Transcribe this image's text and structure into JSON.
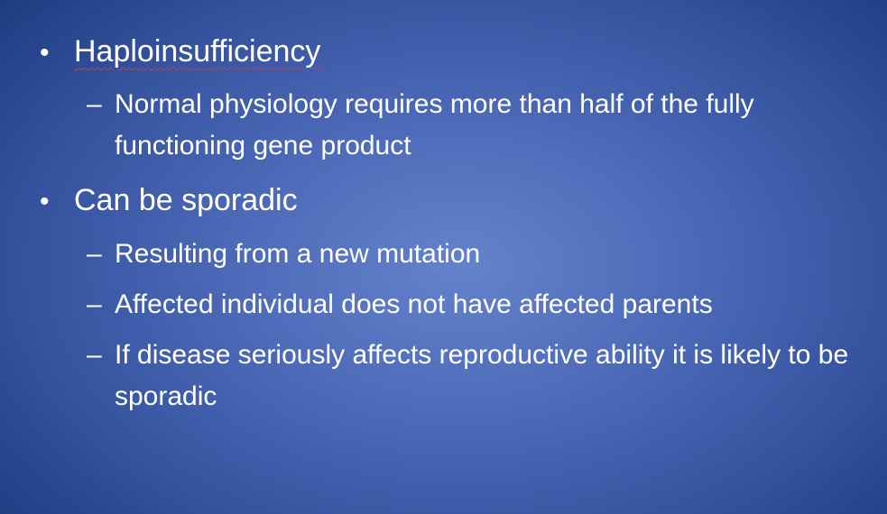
{
  "slide": {
    "background_color": "#4d6bb8",
    "text_color": "#ffffff",
    "bullets": [
      {
        "text": "Haploinsufficiency",
        "marker": "•",
        "sub": [
          {
            "marker": "–",
            "text": "Normal physiology requires more than half of the fully functioning gene product"
          }
        ]
      },
      {
        "text": "Can be sporadic",
        "marker": "•",
        "sub": [
          {
            "marker": "–",
            "text": "Resulting from a new mutation"
          },
          {
            "marker": "–",
            "text": "Affected individual does not have affected parents"
          },
          {
            "marker": "–",
            "text": "If disease seriously affects reproductive ability it is likely to be sporadic"
          }
        ]
      }
    ]
  }
}
